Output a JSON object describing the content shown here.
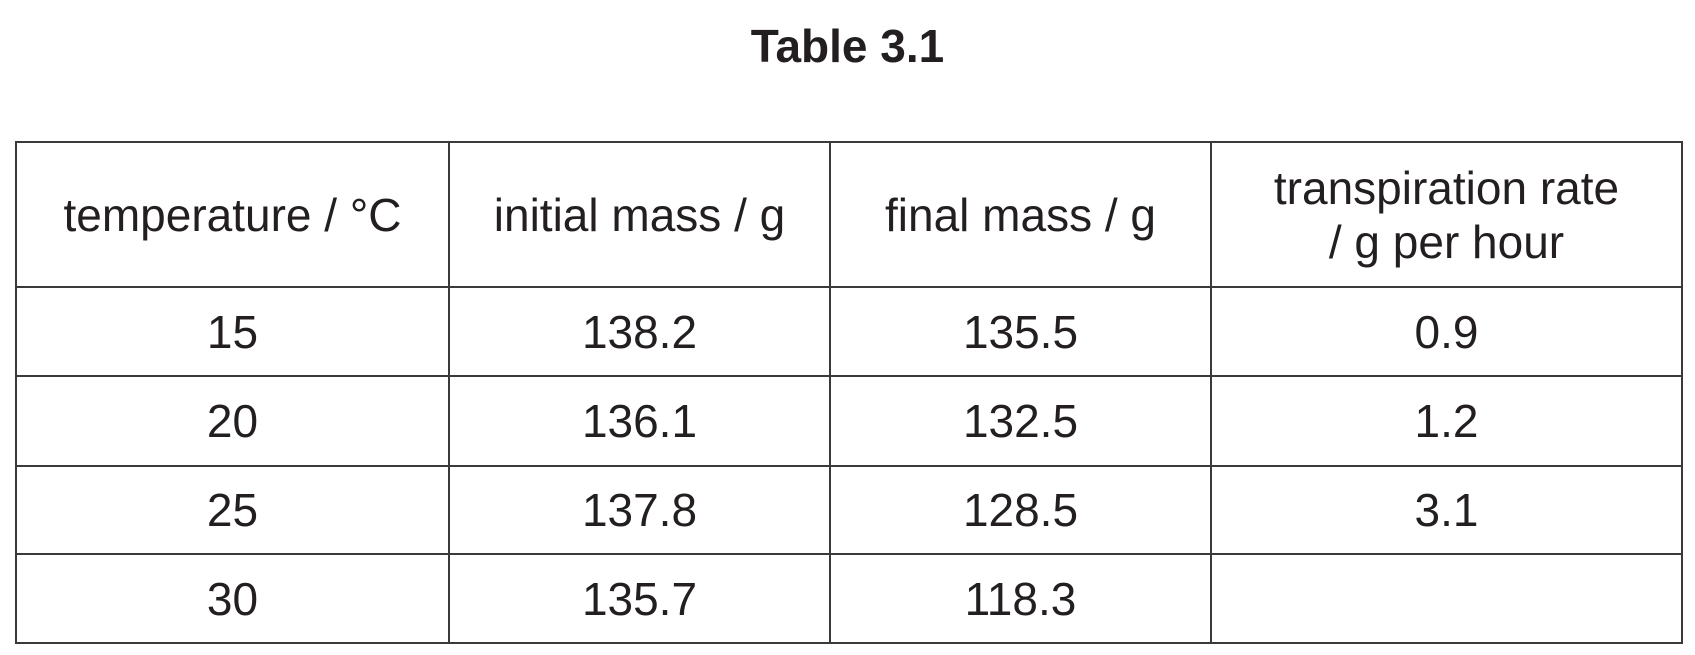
{
  "title": "Table 3.1",
  "table": {
    "header": [
      "temperature / °C",
      "initial mass / g",
      "final mass / g",
      "transpiration rate\n/ g per hour"
    ],
    "rows": [
      [
        "15",
        "138.2",
        "135.5",
        "0.9"
      ],
      [
        "20",
        "136.1",
        "132.5",
        "1.2"
      ],
      [
        "25",
        "137.8",
        "128.5",
        "3.1"
      ],
      [
        "30",
        "135.7",
        "118.3"
      ]
    ]
  }
}
